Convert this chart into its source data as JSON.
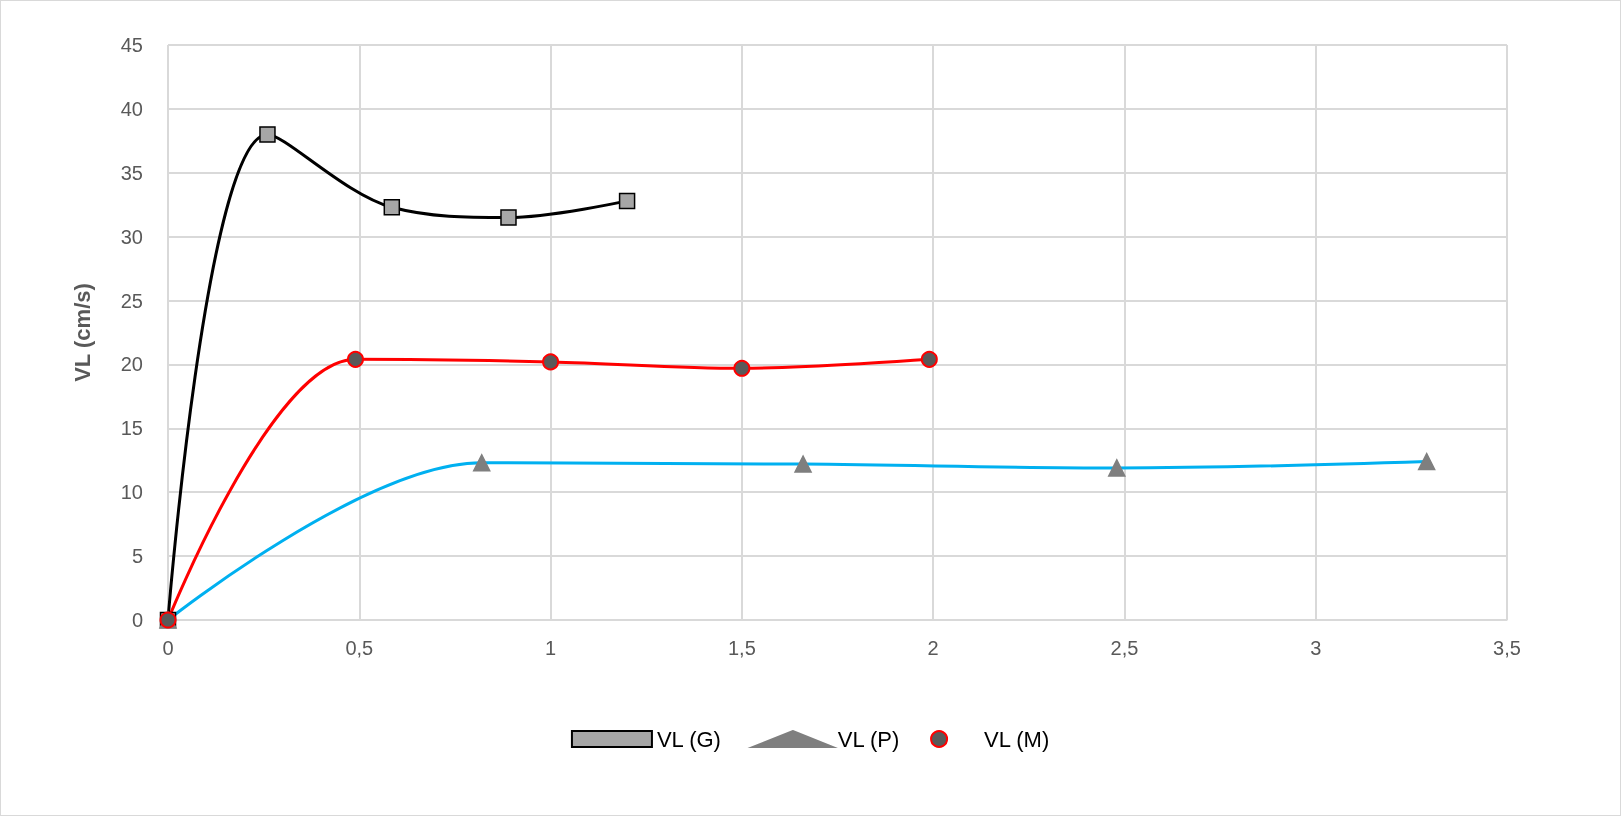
{
  "chart_data": {
    "type": "line",
    "ylabel": "VL (cm/s)",
    "xlim": [
      0,
      3.5
    ],
    "xticks": [
      0,
      {
        "value": 0.5,
        "label": "0,5"
      },
      1,
      {
        "value": 1.5,
        "label": "1,5"
      },
      2,
      {
        "value": 2.5,
        "label": "2,5"
      },
      3,
      {
        "value": 3.5,
        "label": "3,5"
      }
    ],
    "ylim": [
      0,
      45
    ],
    "yticks": [
      0,
      5,
      10,
      15,
      20,
      25,
      30,
      35,
      40,
      45
    ],
    "grid": true,
    "legend": "bottom",
    "line_style": "solid",
    "series": [
      {
        "name": "VL (G)",
        "color": "#000000",
        "marker": "square",
        "x": [
          0,
          0.26,
          0.585,
          0.89,
          1.2
        ],
        "values": [
          0,
          38,
          32.3,
          31.5,
          32.8
        ]
      },
      {
        "name": "VL (P)",
        "color": "#00b0f0",
        "marker": "triangle",
        "x": [
          0,
          0.82,
          1.66,
          2.48,
          3.29
        ],
        "values": [
          0,
          12.3,
          12.2,
          11.9,
          12.4
        ]
      },
      {
        "name": "VL (M)",
        "color": "#ff0000",
        "marker": "circle",
        "x": [
          0,
          0.49,
          1.0,
          1.5,
          1.99
        ],
        "values": [
          0,
          20.4,
          20.2,
          19.7,
          20.4
        ]
      }
    ]
  }
}
